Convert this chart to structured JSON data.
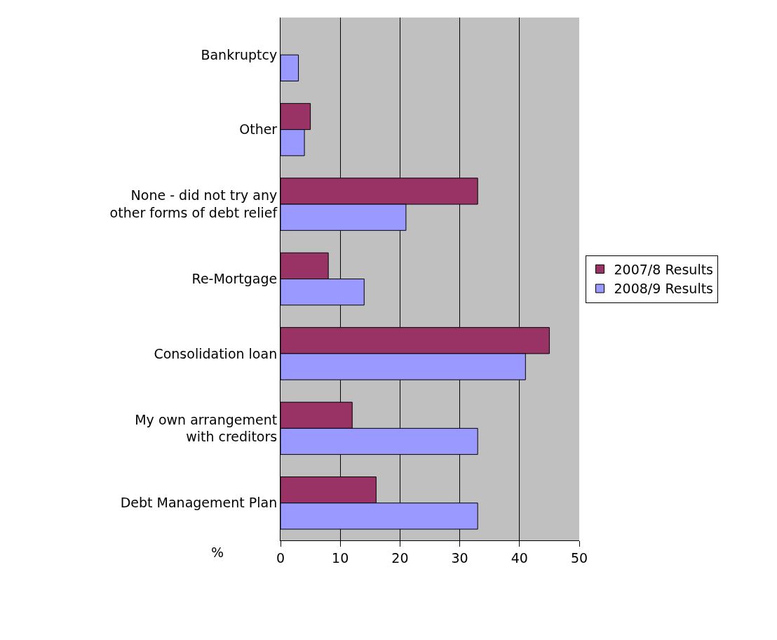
{
  "chart_data": {
    "type": "bar",
    "orientation": "horizontal",
    "xlabel": "%",
    "categories": [
      "Bankruptcy",
      "Other",
      "None - did not try any other forms of debt relief",
      "Re-Mortgage",
      "Consolidation loan",
      "My own arrangement with creditors",
      "Debt Management Plan"
    ],
    "series": [
      {
        "name": "2007/8 Results",
        "color": "#993366",
        "values": [
          null,
          5,
          33,
          8,
          45,
          12,
          16
        ]
      },
      {
        "name": "2008/9 Results",
        "color": "#9999ff",
        "values": [
          3,
          4,
          21,
          14,
          41,
          33,
          33
        ]
      }
    ],
    "xlim": [
      0,
      50
    ],
    "xticks": [
      0,
      10,
      20,
      30,
      40,
      50
    ],
    "grid": "x",
    "legend": "right"
  }
}
